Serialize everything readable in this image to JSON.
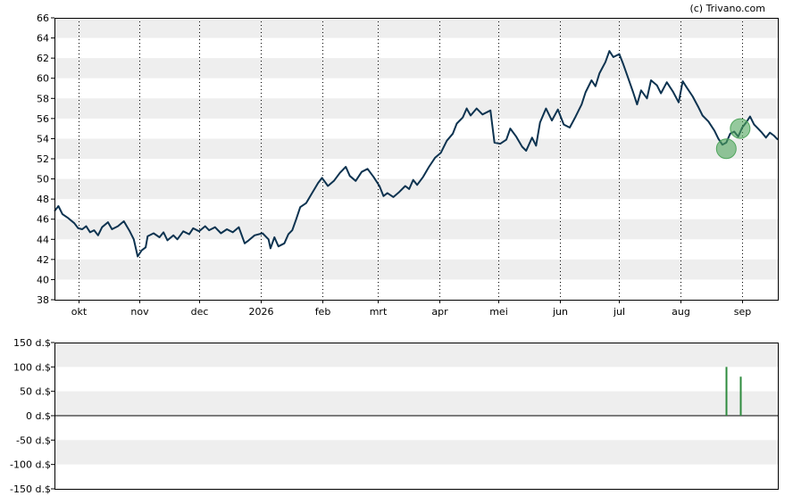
{
  "credit": "(c) Trivano.com",
  "colors": {
    "band": "#eeeeee",
    "price_line": "#0d3350",
    "marker_fill": "#4fa55c",
    "volume_bar": "#2e8b3e",
    "grid": "#000000",
    "axis": "#000000"
  },
  "chart_data": [
    {
      "type": "line",
      "title": "",
      "xlabel": "",
      "ylabel": "",
      "ylim": [
        38,
        66
      ],
      "yticks": [
        38,
        40,
        42,
        44,
        46,
        48,
        50,
        52,
        54,
        56,
        58,
        60,
        62,
        64,
        66
      ],
      "grid": "vertical dotted lines at month ticks, alternating horizontal bands",
      "x_ticks": [
        {
          "label": "okt",
          "x": "2025-10-01"
        },
        {
          "label": "nov",
          "x": "2025-11-01"
        },
        {
          "label": "dec",
          "x": "2025-12-01"
        },
        {
          "label": "2026",
          "x": "2026-01-01"
        },
        {
          "label": "feb",
          "x": "2026-02-01"
        },
        {
          "label": "mrt",
          "x": "2026-03-01"
        },
        {
          "label": "apr",
          "x": "2026-04-01"
        },
        {
          "label": "mei",
          "x": "2026-05-01"
        },
        {
          "label": "jun",
          "x": "2026-06-01"
        },
        {
          "label": "jul",
          "x": "2026-07-01"
        },
        {
          "label": "aug",
          "x": "2026-08-01"
        },
        {
          "label": "sep",
          "x": "2026-09-01"
        }
      ],
      "xlim": [
        "2025-09-19",
        "2026-09-19"
      ],
      "series": [
        {
          "name": "",
          "points": [
            [
              "2025-09-19",
              46.8
            ],
            [
              "2025-09-21",
              47.3
            ],
            [
              "2025-09-23",
              46.5
            ],
            [
              "2025-09-26",
              46.1
            ],
            [
              "2025-09-29",
              45.6
            ],
            [
              "2025-10-01",
              45.1
            ],
            [
              "2025-10-03",
              45.0
            ],
            [
              "2025-10-05",
              45.3
            ],
            [
              "2025-10-07",
              44.7
            ],
            [
              "2025-10-09",
              44.9
            ],
            [
              "2025-10-11",
              44.4
            ],
            [
              "2025-10-13",
              45.2
            ],
            [
              "2025-10-16",
              45.7
            ],
            [
              "2025-10-18",
              45.0
            ],
            [
              "2025-10-21",
              45.3
            ],
            [
              "2025-10-24",
              45.8
            ],
            [
              "2025-10-27",
              44.8
            ],
            [
              "2025-10-29",
              44.0
            ],
            [
              "2025-10-31",
              42.3
            ],
            [
              "2025-11-02",
              42.9
            ],
            [
              "2025-11-04",
              43.2
            ],
            [
              "2025-11-05",
              44.3
            ],
            [
              "2025-11-08",
              44.6
            ],
            [
              "2025-11-11",
              44.2
            ],
            [
              "2025-11-13",
              44.7
            ],
            [
              "2025-11-15",
              43.9
            ],
            [
              "2025-11-18",
              44.4
            ],
            [
              "2025-11-20",
              44.0
            ],
            [
              "2025-11-23",
              44.8
            ],
            [
              "2025-11-26",
              44.5
            ],
            [
              "2025-11-28",
              45.1
            ],
            [
              "2025-12-01",
              44.8
            ],
            [
              "2025-12-04",
              45.3
            ],
            [
              "2025-12-06",
              44.9
            ],
            [
              "2025-12-09",
              45.2
            ],
            [
              "2025-12-12",
              44.6
            ],
            [
              "2025-12-15",
              45.0
            ],
            [
              "2025-12-18",
              44.7
            ],
            [
              "2025-12-21",
              45.2
            ],
            [
              "2025-12-24",
              43.6
            ],
            [
              "2025-12-26",
              43.9
            ],
            [
              "2025-12-29",
              44.4
            ],
            [
              "2026-01-02",
              44.6
            ],
            [
              "2026-01-05",
              44.0
            ],
            [
              "2026-01-06",
              43.1
            ],
            [
              "2026-01-08",
              44.2
            ],
            [
              "2026-01-10",
              43.3
            ],
            [
              "2026-01-13",
              43.6
            ],
            [
              "2026-01-15",
              44.5
            ],
            [
              "2026-01-17",
              44.9
            ],
            [
              "2026-01-19",
              46.0
            ],
            [
              "2026-01-21",
              47.2
            ],
            [
              "2026-01-24",
              47.6
            ],
            [
              "2026-01-27",
              48.6
            ],
            [
              "2026-01-30",
              49.6
            ],
            [
              "2026-02-01",
              50.1
            ],
            [
              "2026-02-04",
              49.3
            ],
            [
              "2026-02-07",
              49.8
            ],
            [
              "2026-02-10",
              50.6
            ],
            [
              "2026-02-13",
              51.2
            ],
            [
              "2026-02-15",
              50.3
            ],
            [
              "2026-02-18",
              49.8
            ],
            [
              "2026-02-21",
              50.7
            ],
            [
              "2026-02-24",
              51.0
            ],
            [
              "2026-02-27",
              50.2
            ],
            [
              "2026-03-02",
              49.3
            ],
            [
              "2026-03-04",
              48.3
            ],
            [
              "2026-03-06",
              48.6
            ],
            [
              "2026-03-09",
              48.2
            ],
            [
              "2026-03-12",
              48.7
            ],
            [
              "2026-03-15",
              49.3
            ],
            [
              "2026-03-17",
              49.0
            ],
            [
              "2026-03-19",
              49.9
            ],
            [
              "2026-03-21",
              49.4
            ],
            [
              "2026-03-24",
              50.2
            ],
            [
              "2026-03-27",
              51.2
            ],
            [
              "2026-03-30",
              52.1
            ],
            [
              "2026-04-02",
              52.6
            ],
            [
              "2026-04-05",
              53.8
            ],
            [
              "2026-04-08",
              54.5
            ],
            [
              "2026-04-10",
              55.5
            ],
            [
              "2026-04-13",
              56.1
            ],
            [
              "2026-04-15",
              57.0
            ],
            [
              "2026-04-17",
              56.3
            ],
            [
              "2026-04-20",
              57.0
            ],
            [
              "2026-04-23",
              56.4
            ],
            [
              "2026-04-27",
              56.8
            ],
            [
              "2026-04-29",
              53.6
            ],
            [
              "2026-05-02",
              53.5
            ],
            [
              "2026-05-05",
              53.9
            ],
            [
              "2026-05-07",
              55.0
            ],
            [
              "2026-05-10",
              54.2
            ],
            [
              "2026-05-13",
              53.2
            ],
            [
              "2026-05-15",
              52.8
            ],
            [
              "2026-05-18",
              54.1
            ],
            [
              "2026-05-20",
              53.3
            ],
            [
              "2026-05-22",
              55.6
            ],
            [
              "2026-05-25",
              57.0
            ],
            [
              "2026-05-28",
              55.8
            ],
            [
              "2026-05-31",
              56.9
            ],
            [
              "2026-06-03",
              55.4
            ],
            [
              "2026-06-06",
              55.1
            ],
            [
              "2026-06-09",
              56.2
            ],
            [
              "2026-06-12",
              57.4
            ],
            [
              "2026-06-14",
              58.6
            ],
            [
              "2026-06-17",
              59.8
            ],
            [
              "2026-06-19",
              59.2
            ],
            [
              "2026-06-21",
              60.5
            ],
            [
              "2026-06-24",
              61.6
            ],
            [
              "2026-06-26",
              62.7
            ],
            [
              "2026-06-28",
              62.1
            ],
            [
              "2026-07-01",
              62.4
            ],
            [
              "2026-07-03",
              61.4
            ],
            [
              "2026-07-05",
              60.3
            ],
            [
              "2026-07-08",
              58.6
            ],
            [
              "2026-07-10",
              57.4
            ],
            [
              "2026-07-12",
              58.8
            ],
            [
              "2026-07-15",
              58.0
            ],
            [
              "2026-07-17",
              59.8
            ],
            [
              "2026-07-20",
              59.3
            ],
            [
              "2026-07-22",
              58.5
            ],
            [
              "2026-07-25",
              59.6
            ],
            [
              "2026-07-28",
              58.7
            ],
            [
              "2026-07-31",
              57.6
            ],
            [
              "2026-08-02",
              59.7
            ],
            [
              "2026-08-04",
              59.1
            ],
            [
              "2026-08-07",
              58.2
            ],
            [
              "2026-08-10",
              57.1
            ],
            [
              "2026-08-12",
              56.3
            ],
            [
              "2026-08-15",
              55.7
            ],
            [
              "2026-08-18",
              54.8
            ],
            [
              "2026-08-20",
              54.0
            ],
            [
              "2026-08-22",
              53.4
            ],
            [
              "2026-08-24",
              53.6
            ],
            [
              "2026-08-26",
              54.5
            ],
            [
              "2026-08-28",
              54.7
            ],
            [
              "2026-08-30",
              54.2
            ],
            [
              "2026-09-01",
              55.1
            ],
            [
              "2026-09-03",
              55.6
            ],
            [
              "2026-09-05",
              56.2
            ],
            [
              "2026-09-07",
              55.4
            ],
            [
              "2026-09-09",
              55.0
            ],
            [
              "2026-09-11",
              54.6
            ],
            [
              "2026-09-13",
              54.1
            ],
            [
              "2026-09-15",
              54.6
            ],
            [
              "2026-09-17",
              54.3
            ],
            [
              "2026-09-19",
              53.9
            ]
          ]
        }
      ],
      "markers": [
        {
          "x": "2026-08-24",
          "y": 53.0
        },
        {
          "x": "2026-08-31",
          "y": 55.0
        }
      ]
    },
    {
      "type": "bar",
      "title": "",
      "xlabel": "",
      "ylabel": "",
      "ylim": [
        -150,
        150
      ],
      "yticks": [
        {
          "value": 150,
          "label": "150 d.$"
        },
        {
          "value": 100,
          "label": "100 d.$"
        },
        {
          "value": 50,
          "label": "50 d.$"
        },
        {
          "value": 0,
          "label": "0 d.$"
        },
        {
          "value": -50,
          "label": "-50 d.$"
        },
        {
          "value": -100,
          "label": "-100 d.$"
        },
        {
          "value": -150,
          "label": "-150 d.$"
        }
      ],
      "xlim": [
        "2025-09-19",
        "2026-09-19"
      ],
      "bars": [
        {
          "x": "2026-08-24",
          "value": 100
        },
        {
          "x": "2026-08-31",
          "value": 80
        }
      ]
    }
  ]
}
